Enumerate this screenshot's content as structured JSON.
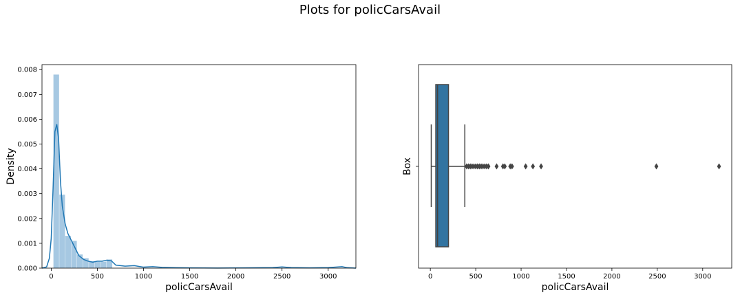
{
  "figure": {
    "suptitle": "Plots for policCarsAvail"
  },
  "colors": {
    "hist_fill": "#a6c8e2",
    "kde_line": "#1f77b4",
    "box_fill": "#3274a1",
    "box_edge": "#444444"
  },
  "chart_data": [
    {
      "type": "histogram",
      "xlabel": "policCarsAvail",
      "ylabel": "Density",
      "xlim": [
        -100,
        3300
      ],
      "ylim": [
        0,
        0.0082
      ],
      "xticks": [
        0,
        500,
        1000,
        1500,
        2000,
        2500,
        3000
      ],
      "yticks": [
        0.0,
        0.001,
        0.002,
        0.003,
        0.004,
        0.005,
        0.006,
        0.007,
        0.008
      ],
      "ytick_labels": [
        "0.000",
        "0.001",
        "0.002",
        "0.003",
        "0.004",
        "0.005",
        "0.006",
        "0.007",
        "0.008"
      ],
      "bin_edges": [
        24,
        88,
        152,
        216,
        280,
        344,
        408,
        472,
        536,
        600,
        664
      ],
      "densities": [
        0.0078,
        0.00296,
        0.0013,
        0.0011,
        0.00055,
        0.0004,
        0.00028,
        0.00026,
        0.00026,
        0.00035
      ],
      "kde": {
        "x": [
          -100,
          -50,
          -20,
          0,
          20,
          40,
          60,
          80,
          100,
          120,
          150,
          180,
          220,
          260,
          300,
          350,
          400,
          450,
          500,
          550,
          600,
          650,
          700,
          800,
          900,
          1000,
          1100,
          1200,
          1300,
          1500,
          1800,
          2100,
          2400,
          2500,
          2600,
          2800,
          3000,
          3150,
          3200,
          3300
        ],
        "y": [
          0,
          5e-05,
          0.0004,
          0.0012,
          0.0032,
          0.0055,
          0.0058,
          0.0052,
          0.0035,
          0.0025,
          0.0018,
          0.0014,
          0.0011,
          0.0008,
          0.0005,
          0.00035,
          0.00028,
          0.00024,
          0.00028,
          0.00028,
          0.00032,
          0.0003,
          0.00012,
          8e-05,
          0.0001,
          4e-05,
          6e-05,
          3e-05,
          2e-05,
          1e-05,
          5e-06,
          1e-05,
          2e-05,
          5e-05,
          2e-05,
          1e-05,
          2e-05,
          6e-05,
          2e-05,
          0
        ]
      }
    },
    {
      "type": "box",
      "xlabel": "policCarsAvail",
      "ylabel": "Box",
      "xlim": [
        -130,
        3320
      ],
      "xticks": [
        0,
        500,
        1000,
        1500,
        2000,
        2500,
        3000
      ],
      "whisker_low": 10,
      "q1": 60,
      "median": 80,
      "q3": 200,
      "whisker_high": 380,
      "outliers": [
        400,
        420,
        440,
        460,
        480,
        500,
        520,
        540,
        560,
        580,
        600,
        620,
        640,
        730,
        800,
        820,
        880,
        900,
        1050,
        1130,
        1220,
        2490,
        3180
      ]
    }
  ]
}
